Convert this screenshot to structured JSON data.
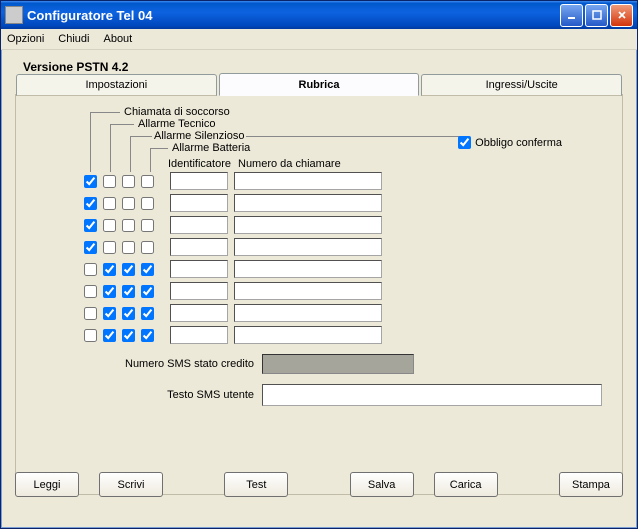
{
  "window": {
    "title": "Configuratore Tel 04"
  },
  "menubar": {
    "items": [
      "Opzioni",
      "Chiudi",
      "About"
    ]
  },
  "version": "Versione PSTN 4.2",
  "tabs": {
    "items": [
      "Impostazioni",
      "Rubrica",
      "Ingressi/Uscite"
    ],
    "active": 1
  },
  "headers": {
    "soccorso": "Chiamata di soccorso",
    "tecnico": "Allarme Tecnico",
    "silenzioso": "Allarme Silenzioso",
    "batteria": "Allarme Batteria",
    "identificatore": "Identificatore",
    "numero": "Numero da chiamare"
  },
  "obbligo": {
    "label": "Obbligo conferma",
    "checked": true
  },
  "rows": [
    {
      "c1": true,
      "c2": false,
      "c3": false,
      "c4": false,
      "id": "",
      "num": ""
    },
    {
      "c1": true,
      "c2": false,
      "c3": false,
      "c4": false,
      "id": "",
      "num": ""
    },
    {
      "c1": true,
      "c2": false,
      "c3": false,
      "c4": false,
      "id": "",
      "num": ""
    },
    {
      "c1": true,
      "c2": false,
      "c3": false,
      "c4": false,
      "id": "",
      "num": ""
    },
    {
      "c1": false,
      "c2": true,
      "c3": true,
      "c4": true,
      "id": "",
      "num": ""
    },
    {
      "c1": false,
      "c2": true,
      "c3": true,
      "c4": true,
      "id": "",
      "num": ""
    },
    {
      "c1": false,
      "c2": true,
      "c3": true,
      "c4": true,
      "id": "",
      "num": ""
    },
    {
      "c1": false,
      "c2": true,
      "c3": true,
      "c4": true,
      "id": "",
      "num": ""
    }
  ],
  "fields": {
    "sms_credit_label": "Numero SMS stato credito",
    "sms_text_label": "Testo SMS utente",
    "sms_credit": "",
    "sms_text": ""
  },
  "buttons": {
    "leggi": "Leggi",
    "scrivi": "Scrivi",
    "test": "Test",
    "salva": "Salva",
    "carica": "Carica",
    "stampa": "Stampa"
  }
}
